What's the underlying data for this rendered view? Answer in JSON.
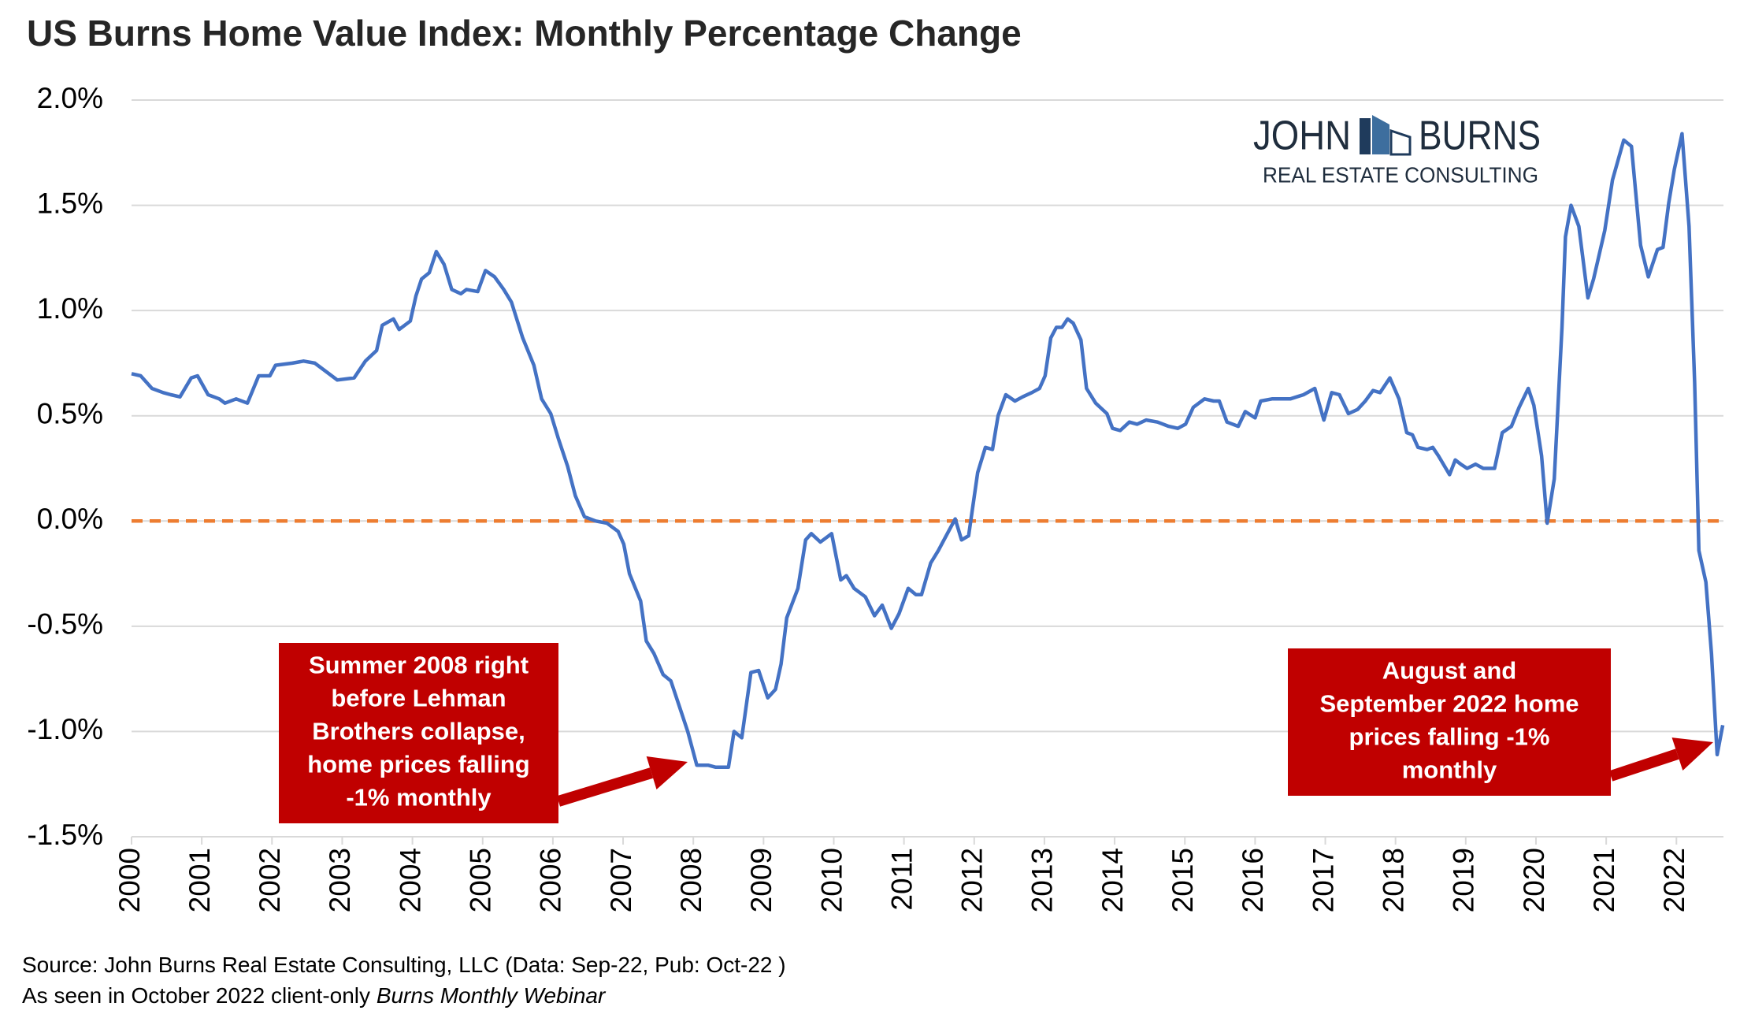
{
  "chart_data": {
    "type": "line",
    "title": "US Burns Home Value Index: Monthly Percentage Change",
    "x": [
      2000.0,
      2000.13,
      2000.29,
      2000.45,
      2000.56,
      2000.69,
      2000.85,
      2000.94,
      2001.09,
      2001.25,
      2001.33,
      2001.49,
      2001.65,
      2001.81,
      2001.97,
      2002.05,
      2002.29,
      2002.45,
      2002.61,
      2002.77,
      2002.93,
      2003.17,
      2003.33,
      2003.49,
      2003.57,
      2003.73,
      2003.81,
      2003.97,
      2004.05,
      2004.13,
      2004.24,
      2004.34,
      2004.45,
      2004.56,
      2004.69,
      2004.77,
      2004.93,
      2005.04,
      2005.17,
      2005.3,
      2005.41,
      2005.57,
      2005.73,
      2005.84,
      2005.97,
      2006.08,
      2006.21,
      2006.32,
      2006.45,
      2006.61,
      2006.77,
      2006.93,
      2007.01,
      2007.09,
      2007.25,
      2007.33,
      2007.44,
      2007.57,
      2007.68,
      2007.81,
      2007.92,
      2008.05,
      2008.21,
      2008.32,
      2008.5,
      2008.58,
      2008.69,
      2008.82,
      2008.93,
      2009.06,
      2009.17,
      2009.25,
      2009.33,
      2009.49,
      2009.6,
      2009.68,
      2009.81,
      2009.97,
      2010.1,
      2010.18,
      2010.29,
      2010.45,
      2010.58,
      2010.69,
      2010.82,
      2010.93,
      2011.06,
      2011.17,
      2011.25,
      2011.38,
      2011.49,
      2011.57,
      2011.73,
      2011.82,
      2011.92,
      2012.05,
      2012.16,
      2012.26,
      2012.34,
      2012.45,
      2012.58,
      2012.69,
      2012.82,
      2012.93,
      2013.01,
      2013.09,
      2013.17,
      2013.25,
      2013.33,
      2013.41,
      2013.52,
      2013.6,
      2013.73,
      2013.89,
      2013.97,
      2014.08,
      2014.21,
      2014.32,
      2014.45,
      2014.61,
      2014.77,
      2014.9,
      2015.01,
      2015.12,
      2015.28,
      2015.41,
      2015.49,
      2015.6,
      2015.76,
      2015.86,
      2016.0,
      2016.08,
      2016.24,
      2016.37,
      2016.5,
      2016.69,
      2016.85,
      2016.98,
      2017.09,
      2017.2,
      2017.33,
      2017.46,
      2017.57,
      2017.68,
      2017.78,
      2017.92,
      2018.05,
      2018.16,
      2018.24,
      2018.32,
      2018.45,
      2018.53,
      2018.61,
      2018.77,
      2018.85,
      2018.93,
      2019.02,
      2019.14,
      2019.25,
      2019.41,
      2019.52,
      2019.65,
      2019.76,
      2019.89,
      2019.97,
      2020.08,
      2020.16,
      2020.26,
      2020.37,
      2020.42,
      2020.5,
      2020.61,
      2020.74,
      2020.82,
      2020.98,
      2021.09,
      2021.25,
      2021.36,
      2021.49,
      2021.6,
      2021.73,
      2021.81,
      2021.89,
      2021.97,
      2022.08,
      2022.18,
      2022.26,
      2022.32,
      2022.42,
      2022.5,
      2022.58,
      2022.66
    ],
    "series": [
      {
        "name": "US Burns Home Value Index",
        "color": "#4472c4",
        "values": [
          0.7,
          0.69,
          0.63,
          0.61,
          0.6,
          0.59,
          0.68,
          0.69,
          0.6,
          0.58,
          0.56,
          0.58,
          0.56,
          0.69,
          0.69,
          0.74,
          0.75,
          0.76,
          0.75,
          0.71,
          0.67,
          0.68,
          0.76,
          0.81,
          0.93,
          0.96,
          0.91,
          0.95,
          1.07,
          1.15,
          1.18,
          1.28,
          1.22,
          1.1,
          1.08,
          1.1,
          1.09,
          1.19,
          1.16,
          1.1,
          1.04,
          0.87,
          0.74,
          0.58,
          0.51,
          0.39,
          0.26,
          0.12,
          0.02,
          0.0,
          -0.01,
          -0.05,
          -0.11,
          -0.25,
          -0.38,
          -0.57,
          -0.63,
          -0.73,
          -0.76,
          -0.89,
          -1.0,
          -1.16,
          -1.16,
          -1.17,
          -1.17,
          -1.0,
          -1.03,
          -0.72,
          -0.71,
          -0.84,
          -0.8,
          -0.68,
          -0.46,
          -0.32,
          -0.09,
          -0.06,
          -0.1,
          -0.06,
          -0.28,
          -0.26,
          -0.32,
          -0.36,
          -0.45,
          -0.4,
          -0.51,
          -0.44,
          -0.32,
          -0.35,
          -0.35,
          -0.2,
          -0.14,
          -0.09,
          0.01,
          -0.09,
          -0.07,
          0.23,
          0.35,
          0.34,
          0.5,
          0.6,
          0.57,
          0.59,
          0.61,
          0.63,
          0.69,
          0.87,
          0.92,
          0.92,
          0.96,
          0.94,
          0.86,
          0.63,
          0.56,
          0.51,
          0.44,
          0.43,
          0.47,
          0.46,
          0.48,
          0.47,
          0.45,
          0.44,
          0.46,
          0.54,
          0.58,
          0.57,
          0.57,
          0.47,
          0.45,
          0.52,
          0.49,
          0.57,
          0.58,
          0.58,
          0.58,
          0.6,
          0.63,
          0.48,
          0.61,
          0.6,
          0.51,
          0.53,
          0.57,
          0.62,
          0.61,
          0.68,
          0.58,
          0.42,
          0.41,
          0.35,
          0.34,
          0.35,
          0.31,
          0.22,
          0.29,
          0.27,
          0.25,
          0.27,
          0.25,
          0.25,
          0.42,
          0.45,
          0.54,
          0.63,
          0.55,
          0.31,
          -0.01,
          0.2,
          0.92,
          1.35,
          1.5,
          1.4,
          1.06,
          1.15,
          1.38,
          1.62,
          1.81,
          1.78,
          1.31,
          1.16,
          1.29,
          1.3,
          1.51,
          1.67,
          1.84,
          1.4,
          0.66,
          -0.14,
          -0.29,
          -0.63,
          -1.11,
          -0.97
        ]
      }
    ],
    "xlim": [
      2000,
      2022.67
    ],
    "xticks": [
      2000,
      2001,
      2002,
      2003,
      2004,
      2005,
      2006,
      2007,
      2008,
      2009,
      2010,
      2011,
      2012,
      2013,
      2014,
      2015,
      2016,
      2017,
      2018,
      2019,
      2020,
      2021,
      2022
    ],
    "ylim": [
      -1.5,
      2.0
    ],
    "yticks": [
      {
        "value": -1.5,
        "label": "-1.5%"
      },
      {
        "value": -1.0,
        "label": "-1.0%"
      },
      {
        "value": -0.5,
        "label": "-0.5%"
      },
      {
        "value": 0,
        "label": "0.0%"
      },
      {
        "value": 0.5,
        "label": "0.5%"
      },
      {
        "value": 1.0,
        "label": "1.0%"
      },
      {
        "value": 1.5,
        "label": "1.5%"
      },
      {
        "value": 2.0,
        "label": "2.0%"
      }
    ],
    "grid": true,
    "reference_line": {
      "value": 0,
      "color": "#ed7d31"
    },
    "annotations": [
      {
        "lines": [
          "Summer 2008 right",
          "before Lehman",
          "Brothers collapse,",
          "home prices falling",
          "-1% monthly"
        ],
        "color": "#c00000"
      },
      {
        "lines": [
          "August and",
          "September 2022 home",
          "prices falling -1%",
          "monthly"
        ],
        "color": "#c00000"
      }
    ],
    "logo": {
      "left": "JOHN",
      "right": "BURNS",
      "tagline": "REAL ESTATE CONSULTING"
    },
    "source": "Source: John Burns Real Estate Consulting, LLC (Data: Sep-22, Pub: Oct-22 )",
    "note": "As seen in October 2022 client-only ",
    "note_italic": "Burns Monthly Webinar"
  }
}
